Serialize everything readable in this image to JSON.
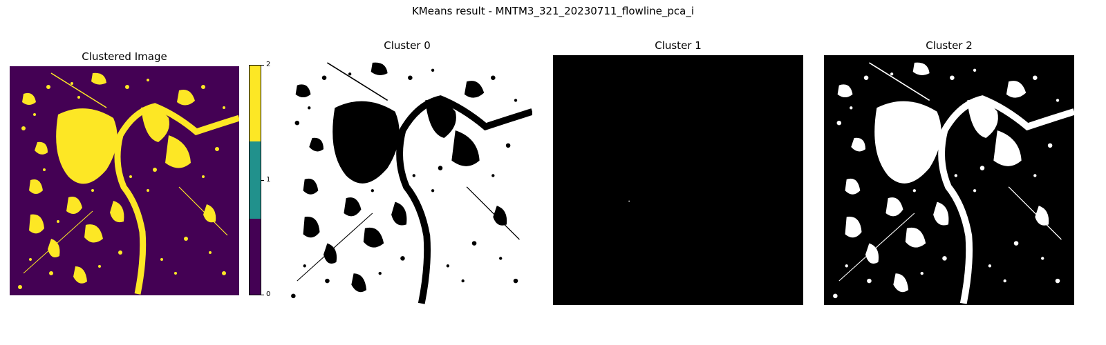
{
  "figure": {
    "suptitle": "KMeans result - MNTM3_321_20230711_flowline_pca_i"
  },
  "panels": [
    {
      "title": "Clustered Image"
    },
    {
      "title": "Cluster 0"
    },
    {
      "title": "Cluster 1"
    },
    {
      "title": "Cluster 2"
    }
  ],
  "colorbar": {
    "ticks": [
      "2",
      "1",
      "0"
    ],
    "colors": {
      "cluster_2": "#fde725",
      "cluster_1": "#21918c",
      "cluster_0": "#440154"
    }
  }
}
